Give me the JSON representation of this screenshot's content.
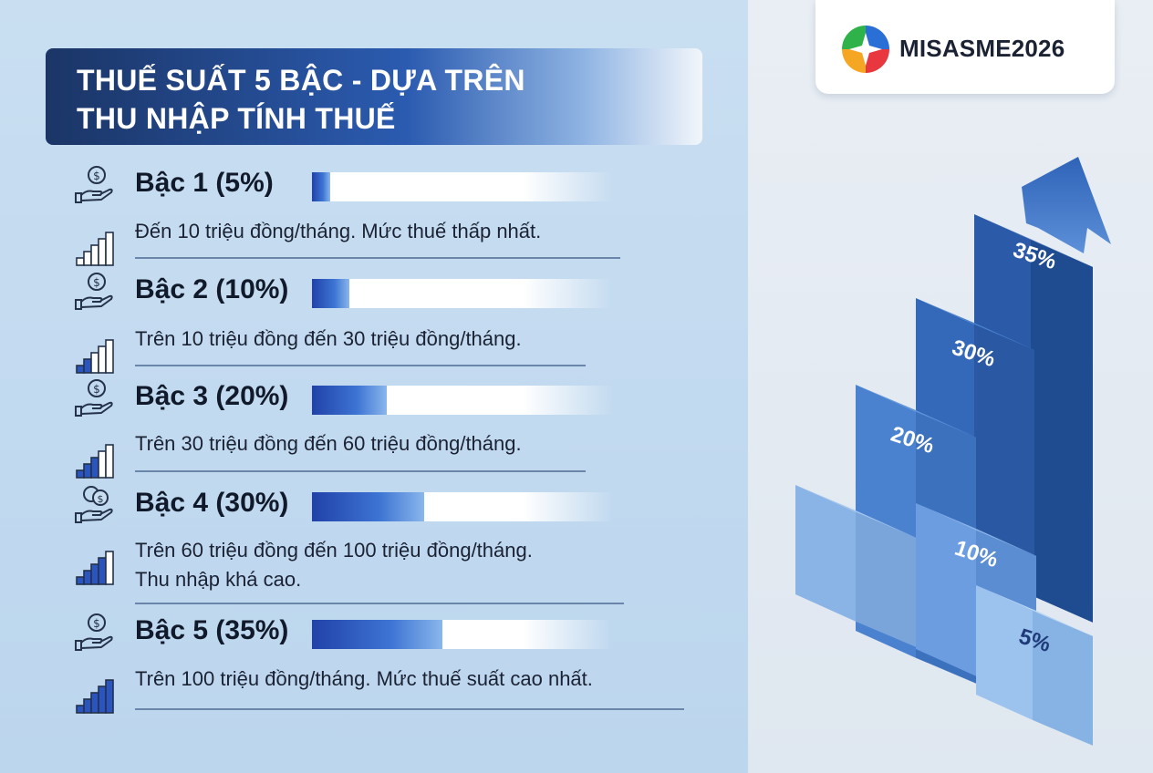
{
  "title": {
    "line1": "THUẾ SUẤT 5 BẬC - DỰA TRÊN",
    "line2": "THU NHẬP TÍNH THUẾ"
  },
  "brand": {
    "name": "MISASME2026"
  },
  "tiers": [
    {
      "label": "Bậc 1 (5%)",
      "rate": 5,
      "desc": [
        "Đến 10 triệu đồng/tháng. Mức thuế thấp nhất."
      ],
      "icon": "hand-dollar-icon"
    },
    {
      "label": "Bậc 2 (10%)",
      "rate": 10,
      "desc": [
        "Trên 10 triệu đồng đến 30 triệu đồng/tháng."
      ],
      "icon": "hand-dollar-icon"
    },
    {
      "label": "Bậc 3 (20%)",
      "rate": 20,
      "desc": [
        "Trên 30 triệu đồng đến 60 triệu đồng/tháng."
      ],
      "icon": "hand-dollar-icon"
    },
    {
      "label": "Bậc 4 (30%)",
      "rate": 30,
      "desc": [
        "Trên 60 triệu đồng đến 100 triệu đồng/tháng.",
        "Thu nhập khá cao."
      ],
      "icon": "hand-coins-icon"
    },
    {
      "label": "Bậc 5 (35%)",
      "rate": 35,
      "desc": [
        "Trên 100 triệu đồng/tháng. Mức thuế suất cao nhất."
      ],
      "icon": "hand-dollar-icon"
    }
  ],
  "steps": [
    "5%",
    "10%",
    "20%",
    "30%",
    "35%"
  ],
  "colors": {
    "accent_dark": "#1b3566",
    "accent": "#2b5bb0",
    "bar_fill": "#2a55c0",
    "text": "#111a2b"
  }
}
